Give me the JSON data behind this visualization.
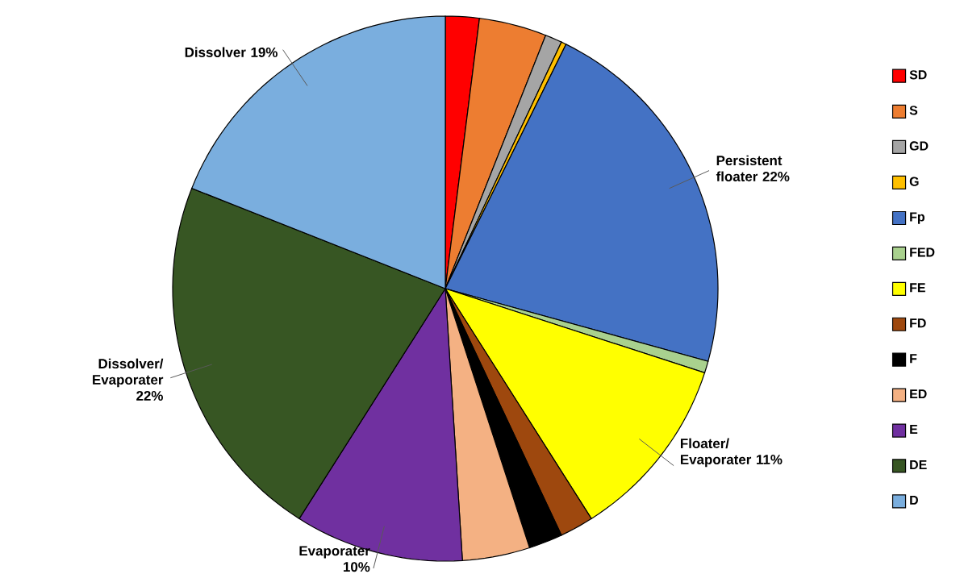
{
  "chart_data": {
    "type": "pie",
    "categories": [
      "SD",
      "S",
      "GD",
      "G",
      "Fp",
      "FED",
      "FE",
      "FD",
      "F",
      "ED",
      "E",
      "DE",
      "D"
    ],
    "values": [
      2,
      4,
      1,
      0.3,
      22,
      0.7,
      11,
      2,
      2,
      4,
      10,
      22,
      19
    ],
    "colors": [
      "#ff0000",
      "#ed7d31",
      "#a5a5a5",
      "#ffc000",
      "#4472c4",
      "#a9d18e",
      "#ffff00",
      "#9e480e",
      "#000000",
      "#f4b183",
      "#7030a0",
      "#375623",
      "#7aaede"
    ],
    "value_labels": [
      null,
      null,
      null,
      null,
      "Persistent floater 22%",
      null,
      "Floater/ Evaporater 11%",
      null,
      null,
      null,
      "Evaporater 10%",
      "Dissolver/ Evaporater 22%",
      "Dissolver 19%"
    ],
    "legend": "right"
  }
}
